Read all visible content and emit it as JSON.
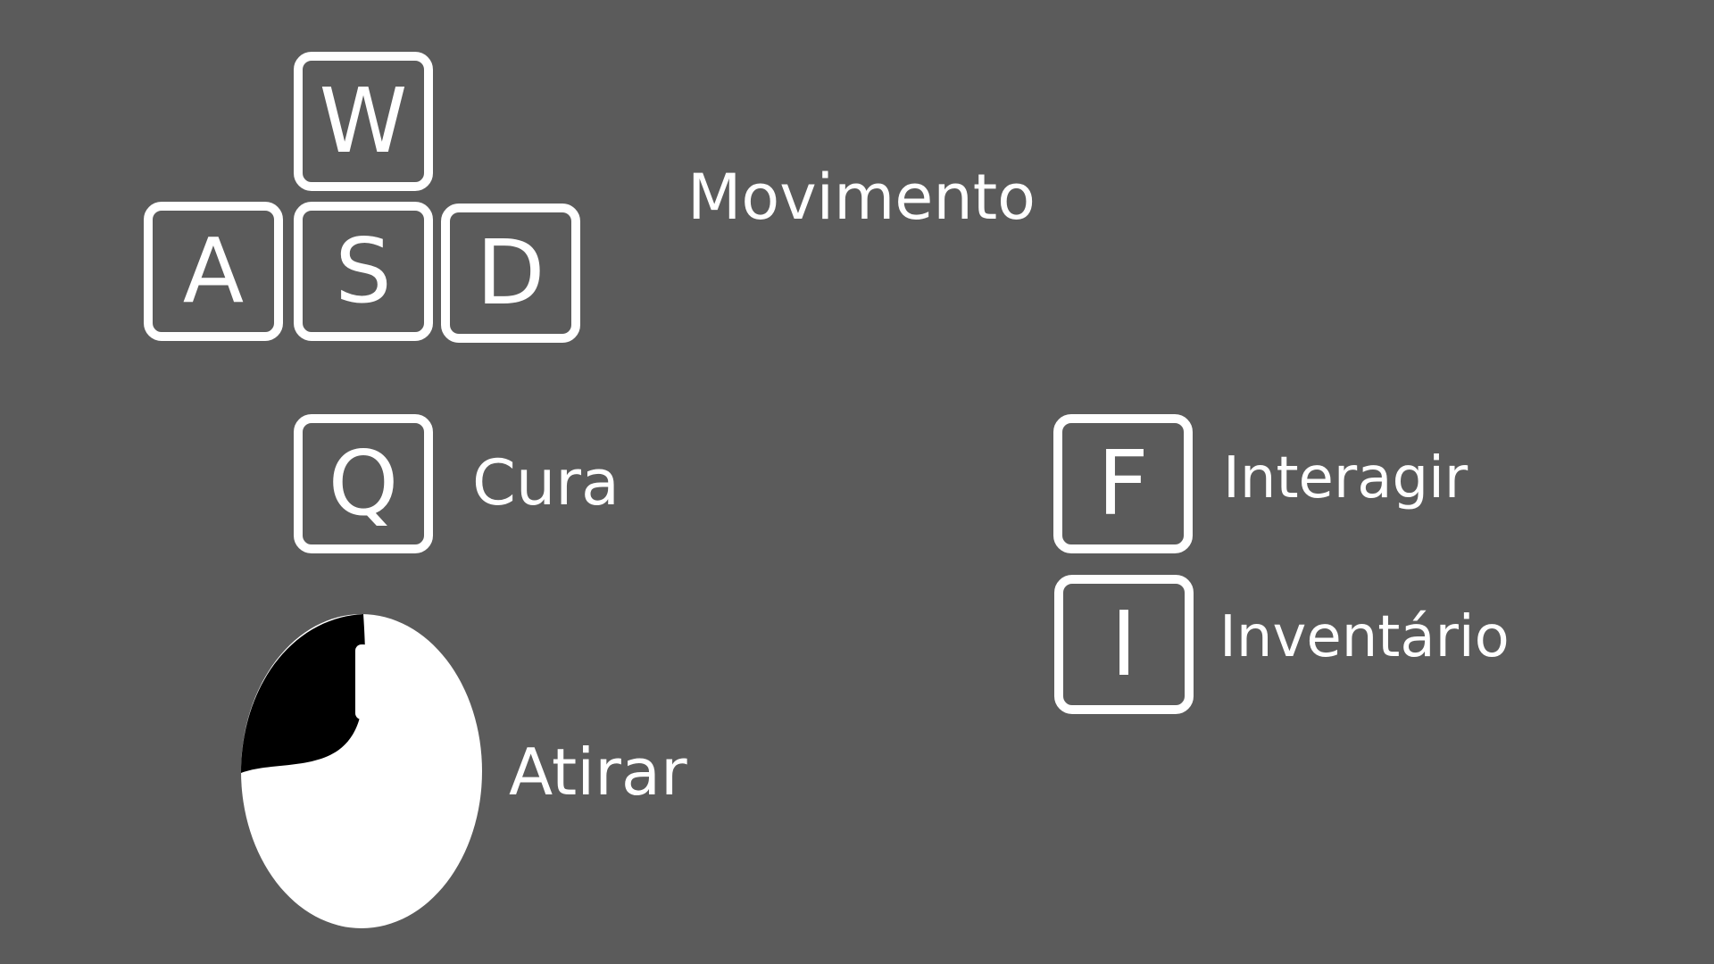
{
  "colors": {
    "background": "#5b5b5b",
    "foreground": "#ffffff",
    "mouse_button_highlight": "#000000"
  },
  "movement": {
    "keys": {
      "up": "W",
      "left": "A",
      "down": "S",
      "right": "D"
    },
    "label": "Movimento"
  },
  "heal": {
    "key": "Q",
    "label": "Cura"
  },
  "interact": {
    "key": "F",
    "label": "Interagir"
  },
  "inventory": {
    "key": "I",
    "label": "Inventário"
  },
  "shoot": {
    "icon": "mouse-left-click-icon",
    "label": "Atirar"
  }
}
